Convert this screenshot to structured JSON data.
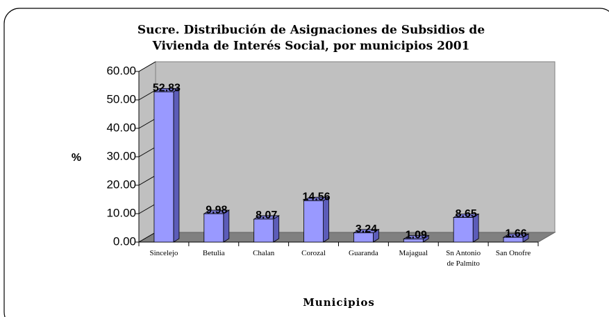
{
  "chart_data": {
    "type": "bar3d",
    "title": [
      "Sucre. Distribución de Asignaciones de Subsidios de",
      "Vivienda de Interés Social, por municipios 2001"
    ],
    "y_label": "%",
    "x_label": "Municipios",
    "categories": [
      "Sincelejo",
      "Betulia",
      "Chalan",
      "Corozal",
      "Guaranda",
      "Majagual",
      "Sn Antonio de Palmito",
      "San Onofre"
    ],
    "values": [
      52.83,
      9.98,
      8.07,
      14.56,
      3.24,
      1.09,
      8.65,
      1.66
    ],
    "color": "#9999ff",
    "ylim": [
      0,
      60
    ],
    "yticks": [
      {
        "value": 0,
        "label": "0.00"
      },
      {
        "value": 10,
        "label": "10.00"
      },
      {
        "value": 20,
        "label": "20.00"
      },
      {
        "value": 30,
        "label": "30.00"
      },
      {
        "value": 40,
        "label": "40.00"
      },
      {
        "value": 50,
        "label": "50.00"
      },
      {
        "value": 60,
        "label": "60.00"
      }
    ],
    "grid": false
  }
}
